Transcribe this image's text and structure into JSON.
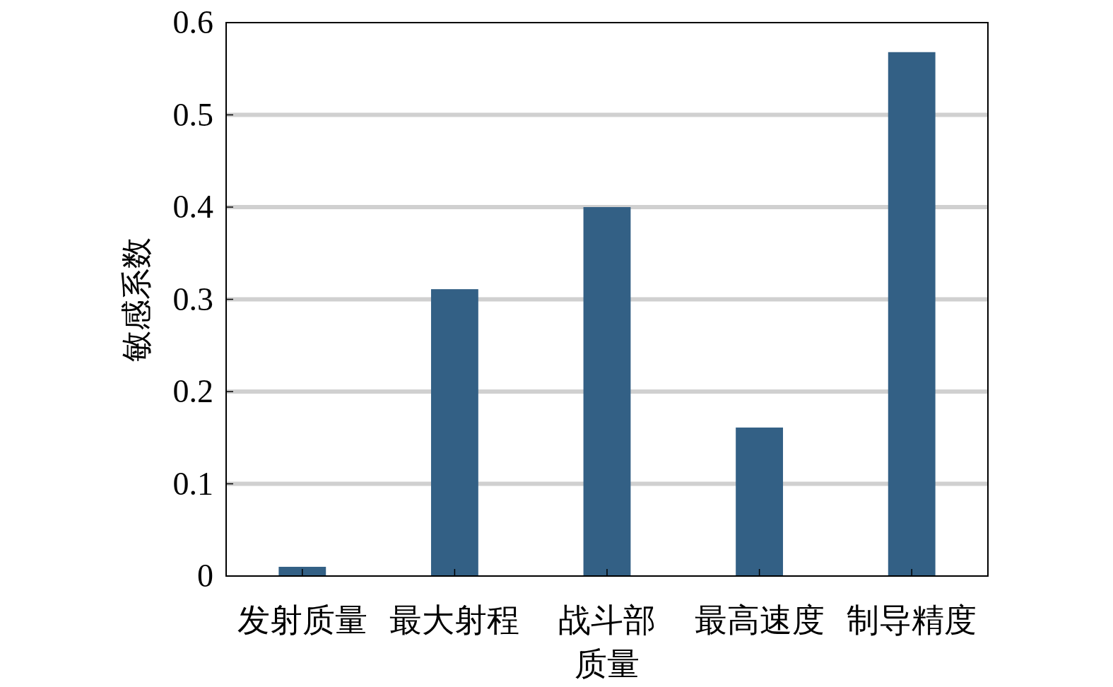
{
  "chart_data": {
    "type": "bar",
    "ylabel": "敏感系数",
    "categories": [
      "发射质量",
      "最大射程",
      "战斗部质量",
      "最高速度",
      "制导精度"
    ],
    "values": [
      0.01,
      0.311,
      0.4,
      0.161,
      0.568
    ],
    "color": "#336085",
    "ylim": [
      0,
      0.6
    ],
    "yticks": [
      {
        "value": 0,
        "label": "0"
      },
      0.1,
      0.2,
      0.3,
      0.4,
      0.5,
      0.6
    ],
    "grid": "y"
  }
}
